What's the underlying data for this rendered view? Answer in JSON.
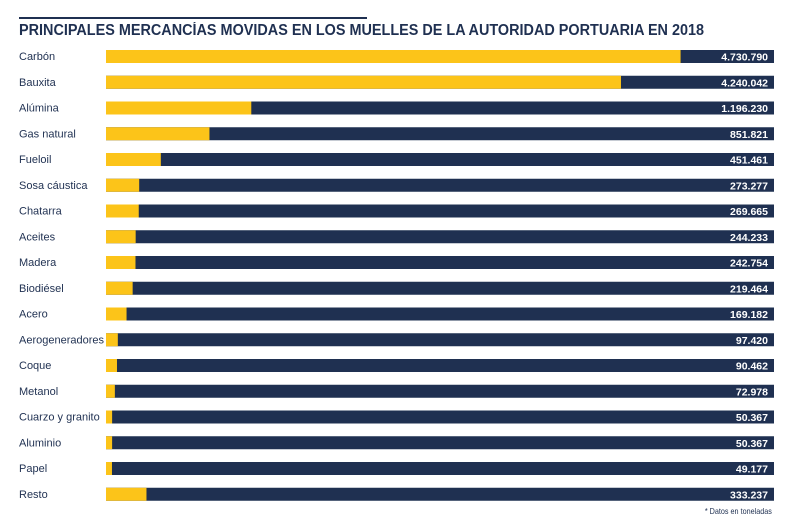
{
  "chart_data": {
    "type": "bar",
    "orientation": "horizontal",
    "title": "PRINCIPALES MERCANCÍAS MOVIDAS EN LOS MUELLES DE LA AUTORIDAD PORTUARIA EN 2018",
    "categories": [
      "Carbón",
      "Bauxita",
      "Alúmina",
      "Gas natural",
      "Fueloil",
      "Sosa cáustica",
      "Chatarra",
      "Aceites",
      "Madera",
      "Biodiésel",
      "Acero",
      "Aerogeneradores",
      "Coque",
      "Metanol",
      "Cuarzo y granito",
      "Aluminio",
      "Papel",
      "Resto"
    ],
    "values": [
      4730790,
      4240042,
      1196230,
      851821,
      451461,
      273277,
      269665,
      244233,
      242754,
      219464,
      169182,
      97420,
      90462,
      72978,
      50367,
      50367,
      49177,
      333237
    ],
    "value_labels": [
      "4.730.790",
      "4.240.042",
      "1.196.230",
      "851.821",
      "451.461",
      "273.277",
      "269.665",
      "244.233",
      "242.754",
      "219.464",
      "169.182",
      "97.420",
      "90.462",
      "72.978",
      "50.367",
      "50.367",
      "49.177",
      "333.237"
    ],
    "xlim": [
      0,
      5500000
    ],
    "xlabel": "",
    "ylabel": "",
    "grid": false,
    "note": "* Datos en toneladas",
    "colors": {
      "value": "#fcc419",
      "track": "#1f3051",
      "text": "#1f3051"
    }
  }
}
